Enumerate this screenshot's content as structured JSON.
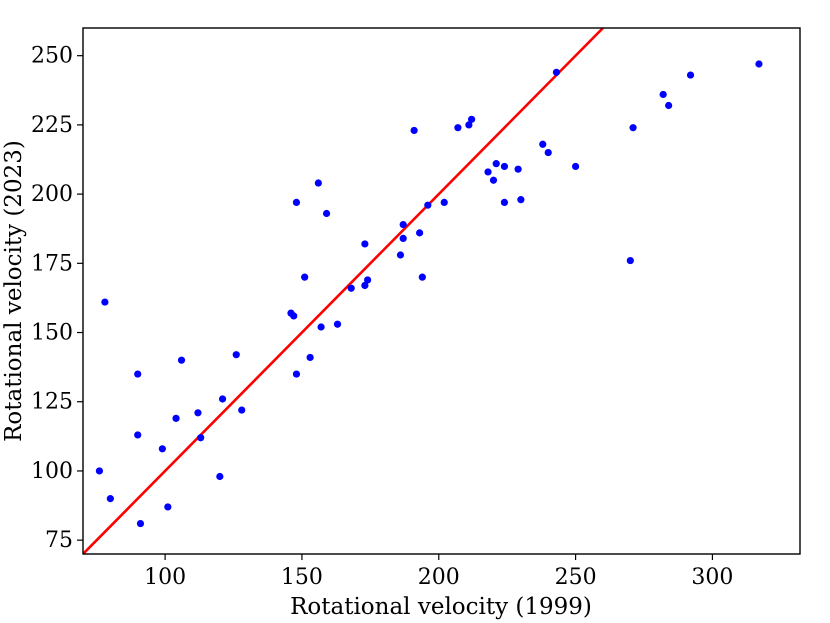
{
  "chart_data": {
    "type": "scatter",
    "title": "",
    "xlabel": "Rotational velocity (1999)",
    "ylabel": "Rotational velocity (2023)",
    "xlim": [
      70,
      332
    ],
    "ylim": [
      70,
      260
    ],
    "xticks": [
      100,
      150,
      200,
      250,
      300
    ],
    "yticks": [
      75,
      100,
      125,
      150,
      175,
      200,
      225,
      250
    ],
    "grid": false,
    "point_color": "#0000ff",
    "line_color": "#ff0000",
    "reference_line": {
      "type": "identity",
      "x": [
        70,
        260
      ],
      "y": [
        70,
        260
      ]
    },
    "points": [
      {
        "x": 76,
        "y": 100
      },
      {
        "x": 78,
        "y": 161
      },
      {
        "x": 80,
        "y": 90
      },
      {
        "x": 90,
        "y": 135
      },
      {
        "x": 90,
        "y": 113
      },
      {
        "x": 91,
        "y": 81
      },
      {
        "x": 99,
        "y": 108
      },
      {
        "x": 101,
        "y": 87
      },
      {
        "x": 104,
        "y": 119
      },
      {
        "x": 106,
        "y": 140
      },
      {
        "x": 112,
        "y": 121
      },
      {
        "x": 113,
        "y": 112
      },
      {
        "x": 120,
        "y": 98
      },
      {
        "x": 121,
        "y": 126
      },
      {
        "x": 126,
        "y": 142
      },
      {
        "x": 128,
        "y": 122
      },
      {
        "x": 146,
        "y": 157
      },
      {
        "x": 147,
        "y": 156
      },
      {
        "x": 148,
        "y": 135
      },
      {
        "x": 148,
        "y": 197
      },
      {
        "x": 151,
        "y": 170
      },
      {
        "x": 153,
        "y": 141
      },
      {
        "x": 156,
        "y": 204
      },
      {
        "x": 157,
        "y": 152
      },
      {
        "x": 159,
        "y": 193
      },
      {
        "x": 163,
        "y": 153
      },
      {
        "x": 168,
        "y": 166
      },
      {
        "x": 173,
        "y": 167
      },
      {
        "x": 173,
        "y": 182
      },
      {
        "x": 174,
        "y": 169
      },
      {
        "x": 186,
        "y": 178
      },
      {
        "x": 187,
        "y": 184
      },
      {
        "x": 187,
        "y": 189
      },
      {
        "x": 191,
        "y": 223
      },
      {
        "x": 193,
        "y": 186
      },
      {
        "x": 194,
        "y": 170
      },
      {
        "x": 196,
        "y": 196
      },
      {
        "x": 202,
        "y": 197
      },
      {
        "x": 207,
        "y": 224
      },
      {
        "x": 211,
        "y": 225
      },
      {
        "x": 212,
        "y": 227
      },
      {
        "x": 218,
        "y": 208
      },
      {
        "x": 220,
        "y": 205
      },
      {
        "x": 221,
        "y": 211
      },
      {
        "x": 224,
        "y": 210
      },
      {
        "x": 224,
        "y": 197
      },
      {
        "x": 229,
        "y": 209
      },
      {
        "x": 230,
        "y": 198
      },
      {
        "x": 238,
        "y": 218
      },
      {
        "x": 240,
        "y": 215
      },
      {
        "x": 243,
        "y": 244
      },
      {
        "x": 250,
        "y": 210
      },
      {
        "x": 270,
        "y": 176
      },
      {
        "x": 271,
        "y": 224
      },
      {
        "x": 282,
        "y": 236
      },
      {
        "x": 284,
        "y": 232
      },
      {
        "x": 292,
        "y": 243
      },
      {
        "x": 317,
        "y": 247
      }
    ]
  }
}
